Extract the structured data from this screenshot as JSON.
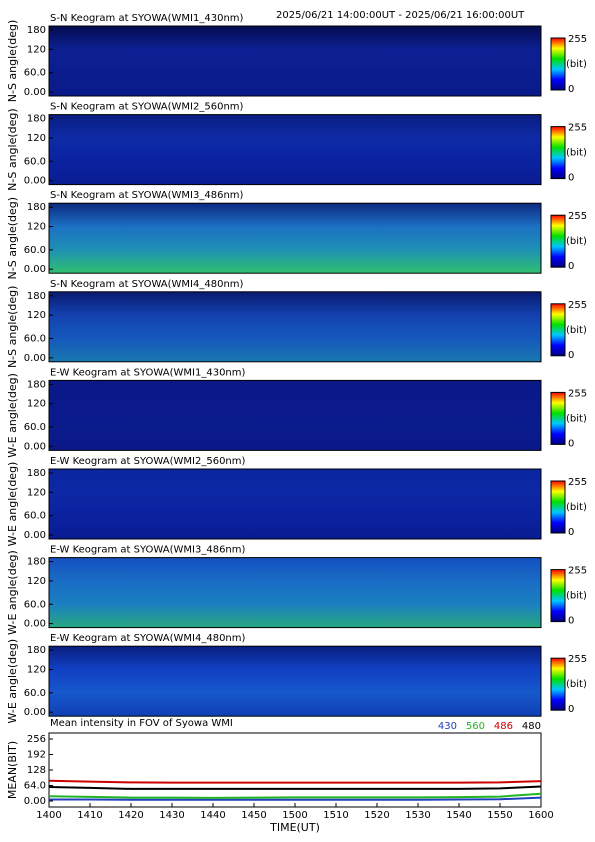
{
  "time_range": "2025/06/21 14:00:00UT - 2025/06/21 16:00:00UT",
  "keograms": [
    {
      "title": "S-N Keogram at SYOWA(WMI1_430nm)",
      "ylabel": "N-S angle(deg)",
      "ylim": [
        0,
        180
      ],
      "yticks": [
        180,
        120,
        {
          "value": 60,
          "label": "60.0"
        },
        {
          "value": 0,
          "label": "0.00"
        }
      ],
      "colorbar": {
        "max": 255,
        "unit": "(bit)",
        "min": 0
      }
    },
    {
      "title": "S-N Keogram at SYOWA(WMI2_560nm)",
      "ylabel": "N-S angle(deg)",
      "ylim": [
        0,
        180
      ],
      "yticks": [
        180,
        120,
        {
          "value": 60,
          "label": "60.0"
        },
        {
          "value": 0,
          "label": "0.00"
        }
      ],
      "colorbar": {
        "max": 255,
        "unit": "(bit)",
        "min": 0
      }
    },
    {
      "title": "S-N Keogram at SYOWA(WMI3_486nm)",
      "ylabel": "N-S angle(deg)",
      "ylim": [
        0,
        180
      ],
      "yticks": [
        180,
        120,
        {
          "value": 60,
          "label": "60.0"
        },
        {
          "value": 0,
          "label": "0.00"
        }
      ],
      "colorbar": {
        "max": 255,
        "unit": "(bit)",
        "min": 0
      }
    },
    {
      "title": "S-N Keogram at SYOWA(WMI4_480nm)",
      "ylabel": "N-S angle(deg)",
      "ylim": [
        0,
        180
      ],
      "yticks": [
        180,
        120,
        {
          "value": 60,
          "label": "60.0"
        },
        {
          "value": 0,
          "label": "0.00"
        }
      ],
      "colorbar": {
        "max": 255,
        "unit": "(bit)",
        "min": 0
      }
    },
    {
      "title": "E-W Keogram at SYOWA(WMI1_430nm)",
      "ylabel": "W-E angle(deg)",
      "ylim": [
        0,
        180
      ],
      "yticks": [
        180,
        120,
        {
          "value": 60,
          "label": "60.0"
        },
        {
          "value": 0,
          "label": "0.00"
        }
      ],
      "colorbar": {
        "max": 255,
        "unit": "(bit)",
        "min": 0
      }
    },
    {
      "title": "E-W Keogram at SYOWA(WMI2_560nm)",
      "ylabel": "W-E angle(deg)",
      "ylim": [
        0,
        180
      ],
      "yticks": [
        180,
        120,
        {
          "value": 60,
          "label": "60.0"
        },
        {
          "value": 0,
          "label": "0.00"
        }
      ],
      "colorbar": {
        "max": 255,
        "unit": "(bit)",
        "min": 0
      }
    },
    {
      "title": "E-W Keogram at SYOWA(WMI3_486nm)",
      "ylabel": "W-E angle(deg)",
      "ylim": [
        0,
        180
      ],
      "yticks": [
        180,
        120,
        {
          "value": 60,
          "label": "60.0"
        },
        {
          "value": 0,
          "label": "0.00"
        }
      ],
      "colorbar": {
        "max": 255,
        "unit": "(bit)",
        "min": 0
      }
    },
    {
      "title": "E-W Keogram at SYOWA(WMI4_480nm)",
      "ylabel": "W-E angle(deg)",
      "ylim": [
        0,
        180
      ],
      "yticks": [
        180,
        120,
        {
          "value": 60,
          "label": "60.0"
        },
        {
          "value": 0,
          "label": "0.00"
        }
      ],
      "colorbar": {
        "max": 255,
        "unit": "(bit)",
        "min": 0
      }
    }
  ],
  "chart_data": {
    "type": "line",
    "title": "Mean intensity in FOV of Syowa WMI",
    "xlabel": "TIME(UT)",
    "ylabel": "MEAN(BIT)",
    "x": [
      840,
      850,
      860,
      870,
      880,
      890,
      900,
      910,
      920,
      930,
      940,
      950,
      960
    ],
    "xlim": [
      840,
      960
    ],
    "xticks": [
      {
        "value": 840,
        "label": "1400"
      },
      {
        "value": 850,
        "label": "1410"
      },
      {
        "value": 860,
        "label": "1420"
      },
      {
        "value": 870,
        "label": "1430"
      },
      {
        "value": 880,
        "label": "1440"
      },
      {
        "value": 890,
        "label": "1450"
      },
      {
        "value": 900,
        "label": "1500"
      },
      {
        "value": 910,
        "label": "1510"
      },
      {
        "value": 920,
        "label": "1520"
      },
      {
        "value": 930,
        "label": "1530"
      },
      {
        "value": 940,
        "label": "1540"
      },
      {
        "value": 950,
        "label": "1550"
      },
      {
        "value": 960,
        "label": "1600"
      }
    ],
    "ylim": [
      0,
      256
    ],
    "yticks": [
      256,
      192,
      128,
      {
        "value": 64,
        "label": "64.0"
      },
      {
        "value": 0,
        "label": "0.00"
      }
    ],
    "series": [
      {
        "name": "430",
        "color": "#1f3fbf",
        "values": [
          6,
          6,
          5,
          5,
          5,
          5,
          5,
          5,
          5,
          5,
          6,
          7,
          14
        ]
      },
      {
        "name": "560",
        "color": "#22b422",
        "values": [
          20,
          17,
          14,
          14,
          13,
          14,
          15,
          15,
          15,
          15,
          16,
          18,
          30
        ]
      },
      {
        "name": "486",
        "color": "#cc0000",
        "values": [
          84,
          80,
          77,
          76,
          76,
          76,
          76,
          76,
          76,
          76,
          76,
          77,
          82
        ]
      },
      {
        "name": "480",
        "color": "#000000",
        "values": [
          58,
          54,
          50,
          50,
          50,
          50,
          50,
          50,
          50,
          50,
          50,
          52,
          60
        ]
      }
    ]
  }
}
